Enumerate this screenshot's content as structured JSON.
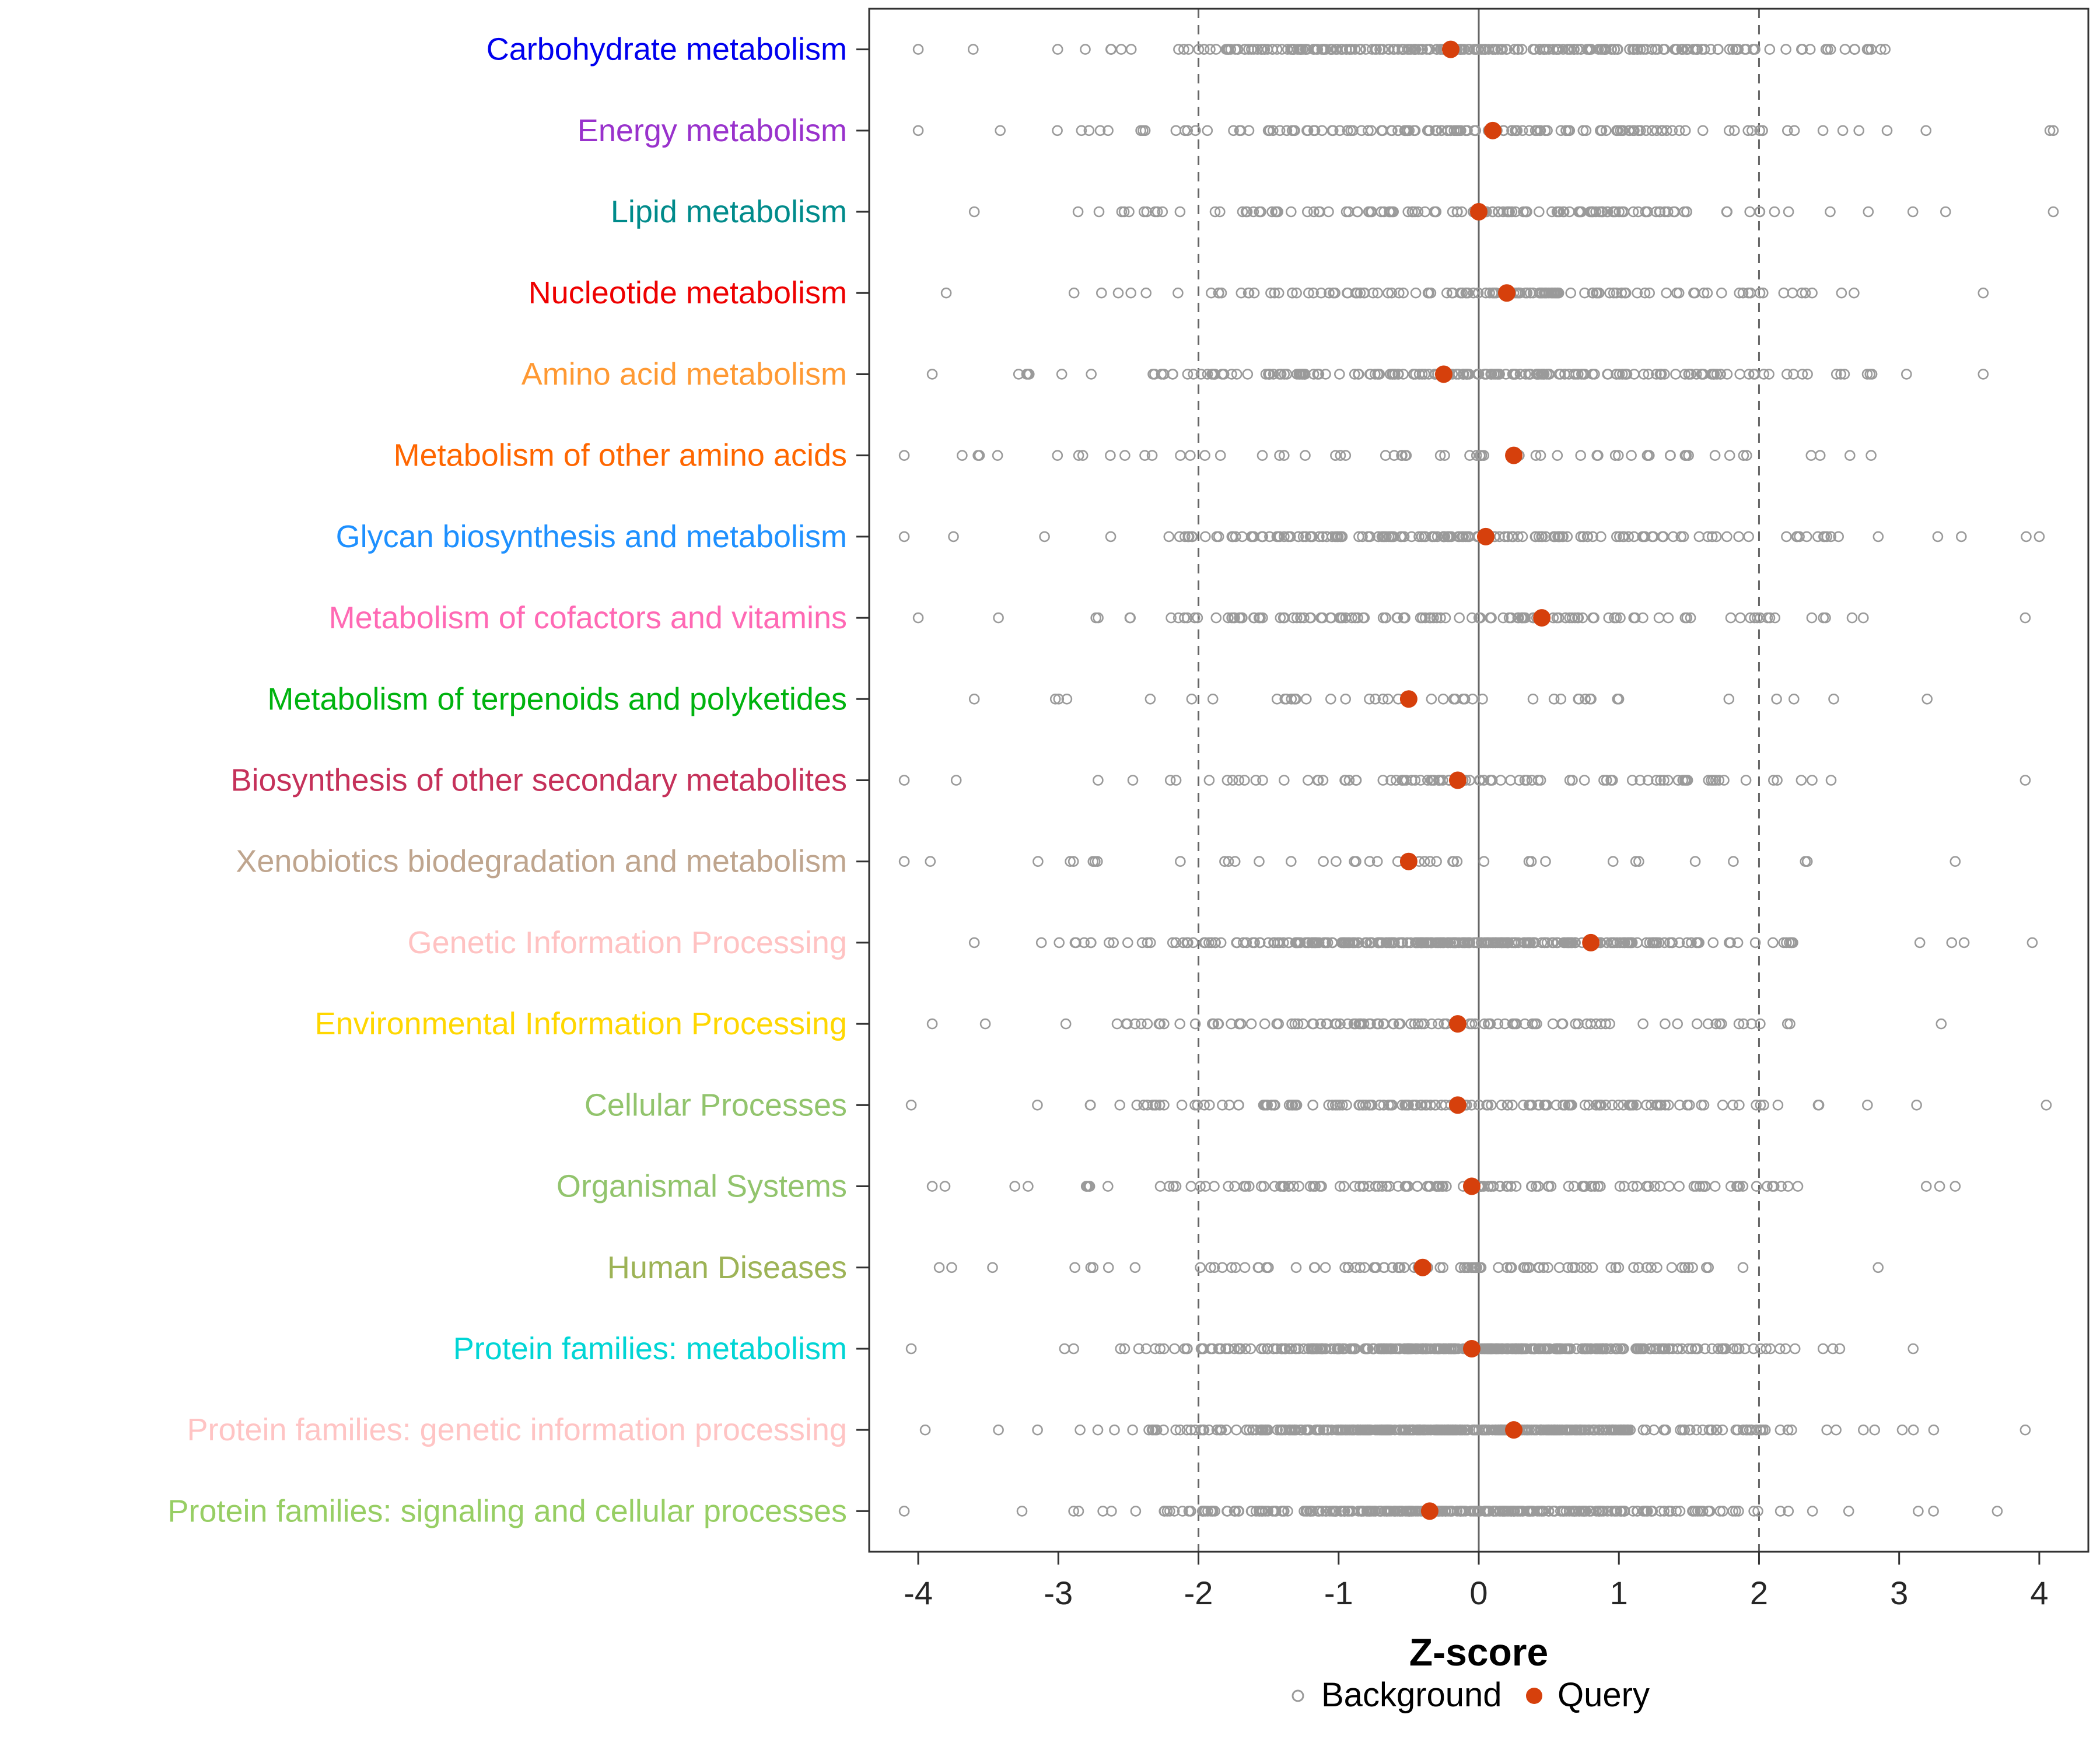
{
  "chart_data": {
    "type": "scatter",
    "subtype": "strip-dot-plot",
    "title": "",
    "xlabel": "Z-score",
    "xlim": [
      -4.35,
      4.35
    ],
    "xticks": [
      -4,
      -3,
      -2,
      -1,
      0,
      1,
      2,
      3,
      4
    ],
    "grid": false,
    "reference_lines": {
      "solid": [
        0
      ],
      "dashed": [
        -2,
        2
      ]
    },
    "legend": {
      "position": "bottom",
      "items": [
        {
          "label": "Background",
          "marker": "open-circle",
          "color": "#9A9A9A"
        },
        {
          "label": "Query",
          "marker": "filled-circle",
          "color": "#D6400C"
        }
      ]
    },
    "colors": {
      "query_dot": "#D6400C",
      "background_stroke": "#9A9A9A",
      "panel_border": "#333333",
      "axis_text": "#262626",
      "axis_title": "#000000",
      "ref_line": "#666666"
    },
    "categories": [
      {
        "label": "Carbohydrate metabolism",
        "color": "#0000EE",
        "query_z": -0.2,
        "background": {
          "n": 260,
          "mean": -0.05,
          "sd": 1.25,
          "min": -4.0,
          "max": 2.9,
          "seed": 11
        }
      },
      {
        "label": "Energy metabolism",
        "color": "#9932CC",
        "query_z": 0.1,
        "background": {
          "n": 160,
          "mean": 0.0,
          "sd": 1.3,
          "min": -4.0,
          "max": 4.1,
          "seed": 22
        }
      },
      {
        "label": "Lipid metabolism",
        "color": "#008B8B",
        "query_z": 0.0,
        "background": {
          "n": 140,
          "mean": 0.05,
          "sd": 1.25,
          "min": -3.6,
          "max": 4.1,
          "seed": 33
        }
      },
      {
        "label": "Nucleotide metabolism",
        "color": "#EE0000",
        "query_z": 0.2,
        "background": {
          "n": 130,
          "mean": 0.0,
          "sd": 1.4,
          "min": -3.8,
          "max": 3.6,
          "seed": 44
        }
      },
      {
        "label": "Amino acid metabolism",
        "color": "#FF9933",
        "query_z": -0.25,
        "background": {
          "n": 200,
          "mean": -0.1,
          "sd": 1.3,
          "min": -3.9,
          "max": 3.6,
          "seed": 55
        }
      },
      {
        "label": "Metabolism of other amino acids",
        "color": "#FF6600",
        "query_z": 0.25,
        "background": {
          "n": 62,
          "mean": -0.3,
          "sd": 1.7,
          "min": -4.1,
          "max": 2.8,
          "seed": 66
        }
      },
      {
        "label": "Glycan biosynthesis and metabolism",
        "color": "#1E90FF",
        "query_z": 0.05,
        "background": {
          "n": 175,
          "mean": -0.1,
          "sd": 1.4,
          "min": -4.1,
          "max": 4.0,
          "seed": 77
        }
      },
      {
        "label": "Metabolism of cofactors and vitamins",
        "color": "#FF69B4",
        "query_z": 0.45,
        "background": {
          "n": 130,
          "mean": -0.1,
          "sd": 1.3,
          "min": -4.0,
          "max": 3.9,
          "seed": 88
        }
      },
      {
        "label": "Metabolism of terpenoids and polyketides",
        "color": "#00B30F",
        "query_z": -0.5,
        "background": {
          "n": 46,
          "mean": -0.3,
          "sd": 1.6,
          "min": -3.6,
          "max": 3.2,
          "seed": 99
        }
      },
      {
        "label": "Biosynthesis of other secondary metabolites",
        "color": "#C5315A",
        "query_z": -0.15,
        "background": {
          "n": 92,
          "mean": -0.1,
          "sd": 1.35,
          "min": -4.1,
          "max": 3.9,
          "seed": 110
        }
      },
      {
        "label": "Xenobiotics biodegradation and metabolism",
        "color": "#BFA58E",
        "query_z": -0.5,
        "background": {
          "n": 40,
          "mean": -0.4,
          "sd": 1.7,
          "min": -4.1,
          "max": 3.4,
          "seed": 121
        }
      },
      {
        "label": "Genetic Information Processing",
        "color": "#FFC2C2",
        "query_z": 0.8,
        "background": {
          "n": 290,
          "mean": -0.15,
          "sd": 1.2,
          "min": -3.6,
          "max": 3.95,
          "seed": 132
        }
      },
      {
        "label": "Environmental Information Processing",
        "color": "#FFD700",
        "query_z": -0.15,
        "background": {
          "n": 115,
          "mean": -0.15,
          "sd": 1.25,
          "min": -3.9,
          "max": 3.3,
          "seed": 143
        }
      },
      {
        "label": "Cellular Processes",
        "color": "#92C46D",
        "query_z": -0.15,
        "background": {
          "n": 165,
          "mean": -0.2,
          "sd": 1.3,
          "min": -4.05,
          "max": 4.05,
          "seed": 154
        }
      },
      {
        "label": "Organismal Systems",
        "color": "#92C46D",
        "query_z": -0.05,
        "background": {
          "n": 135,
          "mean": -0.1,
          "sd": 1.25,
          "min": -3.9,
          "max": 3.4,
          "seed": 165
        }
      },
      {
        "label": "Human Diseases",
        "color": "#9DB356",
        "query_z": -0.4,
        "background": {
          "n": 100,
          "mean": -0.25,
          "sd": 1.15,
          "min": -3.85,
          "max": 2.85,
          "seed": 176
        }
      },
      {
        "label": "Protein families: metabolism",
        "color": "#00D5D5",
        "query_z": -0.05,
        "background": {
          "n": 380,
          "mean": -0.05,
          "sd": 1.1,
          "min": -4.05,
          "max": 3.1,
          "seed": 187
        }
      },
      {
        "label": "Protein families: genetic information processing",
        "color": "#FFC4C4",
        "query_z": 0.25,
        "background": {
          "n": 420,
          "mean": -0.05,
          "sd": 1.1,
          "min": -3.95,
          "max": 3.9,
          "seed": 198
        }
      },
      {
        "label": "Protein families: signaling and cellular processes",
        "color": "#97CE64",
        "query_z": -0.35,
        "background": {
          "n": 320,
          "mean": -0.15,
          "sd": 1.15,
          "min": -4.1,
          "max": 3.7,
          "seed": 209
        }
      }
    ]
  }
}
